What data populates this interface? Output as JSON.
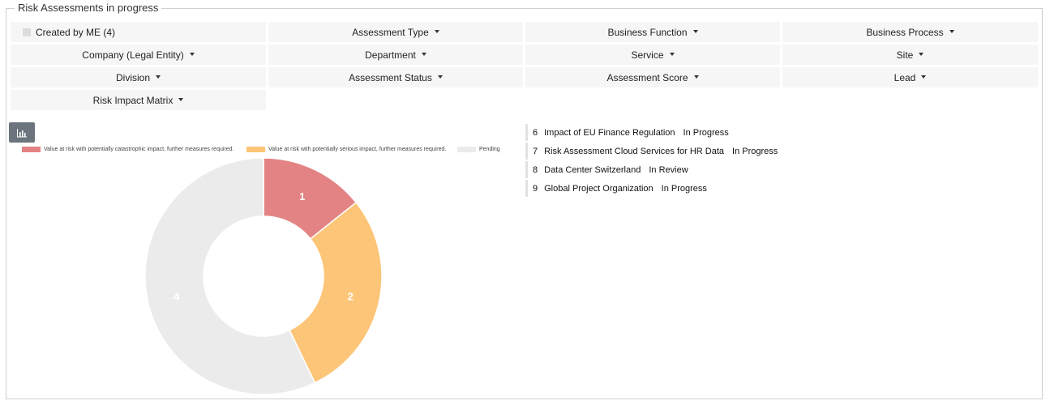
{
  "panel": {
    "title": "Risk Assessments in progress"
  },
  "filters": {
    "created_by_me": "Created by ME (4)",
    "assessment_type": "Assessment Type",
    "business_function": "Business Function",
    "business_process": "Business Process",
    "company": "Company (Legal Entity)",
    "department": "Department",
    "service": "Service",
    "site": "Site",
    "division": "Division",
    "assessment_status": "Assessment Status",
    "assessment_score": "Assessment Score",
    "lead": "Lead",
    "risk_impact_matrix": "Risk Impact Matrix"
  },
  "chart_button": {
    "icon": "bar-chart-icon"
  },
  "chart_data": {
    "type": "pie",
    "categories": [
      "Value at risk with potentially catastrophic impact, further measures required.",
      "Value at risk with potentially serious impact, further measures required.",
      "Pending"
    ],
    "values": [
      1,
      2,
      4
    ],
    "colors": [
      "#e48383",
      "#fdc578",
      "#ebebeb"
    ],
    "legend_position": "top"
  },
  "assessments": [
    {
      "id": "6",
      "title": "Impact of EU Finance Regulation",
      "status": "In Progress"
    },
    {
      "id": "7",
      "title": "Risk Assessment Cloud Services for HR Data",
      "status": "In Progress"
    },
    {
      "id": "8",
      "title": "Data Center Switzerland",
      "status": "In Review"
    },
    {
      "id": "9",
      "title": "Global Project Organization",
      "status": "In Progress"
    }
  ]
}
